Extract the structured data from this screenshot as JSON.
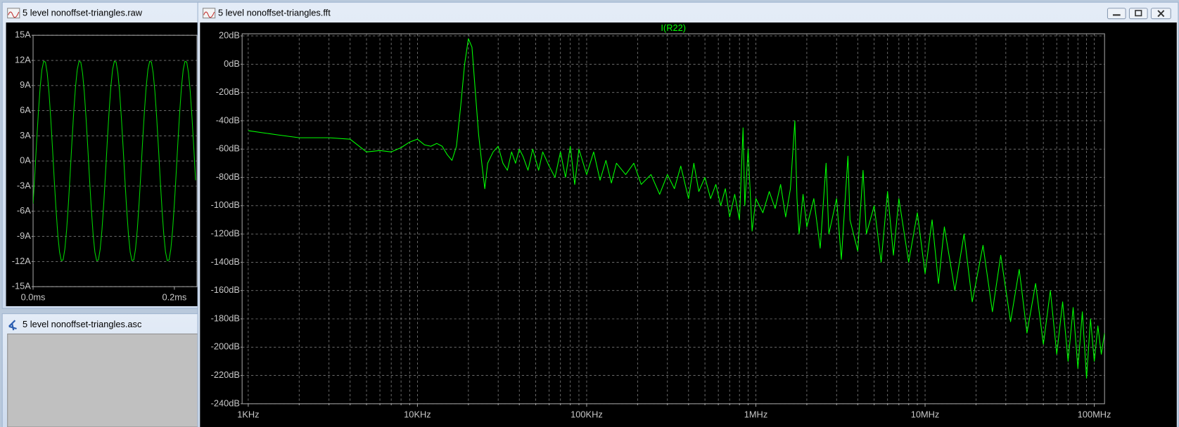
{
  "windows": [
    {
      "title": "5 level nonoffset-triangles.raw"
    },
    {
      "title": "5 level nonoffset-triangles.asc"
    },
    {
      "title": "5 level nonoffset-triangles.fft"
    }
  ],
  "chart_data": [
    {
      "type": "line",
      "x": [
        0,
        0.0025,
        0.005,
        0.0075,
        0.01,
        0.0125,
        0.015,
        0.0175,
        0.02,
        0.0225,
        0.025,
        0.0275,
        0.03,
        0.0325,
        0.035,
        0.0375,
        0.04,
        0.0425,
        0.045,
        0.0475,
        0.05,
        0.0525,
        0.055,
        0.0575,
        0.06,
        0.0625,
        0.065,
        0.0675,
        0.07,
        0.0725,
        0.075,
        0.0775,
        0.08,
        0.0825,
        0.085,
        0.0875,
        0.09,
        0.0925,
        0.095,
        0.0975,
        0.1,
        0.1025,
        0.105,
        0.1075,
        0.11,
        0.1125,
        0.115,
        0.1175,
        0.12,
        0.1225,
        0.125,
        0.1275,
        0.13,
        0.1325,
        0.135,
        0.1375,
        0.14,
        0.1425,
        0.145,
        0.1475,
        0.15,
        0.1525,
        0.155,
        0.1575,
        0.16,
        0.1625,
        0.165,
        0.1675,
        0.17,
        0.1725,
        0.175,
        0.1775,
        0.18,
        0.1825,
        0.185,
        0.1875,
        0.19,
        0.1925,
        0.195,
        0.1975,
        0.2,
        0.2025,
        0.205,
        0.2075,
        0.21,
        0.2125,
        0.215,
        0.2175,
        0.22,
        0.2225,
        0.225,
        0.2275,
        0.23
      ],
      "series": [
        {
          "color": "#00d400",
          "values": [
            -5.1,
            -1.5,
            2.3,
            5.8,
            8.8,
            10.9,
            11.9,
            11.8,
            10.5,
            8.2,
            5.1,
            1.5,
            -2.3,
            -5.8,
            -8.8,
            -10.9,
            -11.9,
            -11.8,
            -10.5,
            -8.2,
            -5.1,
            -1.5,
            2.3,
            5.8,
            8.8,
            10.9,
            11.9,
            11.8,
            10.5,
            8.2,
            5.1,
            1.5,
            -2.3,
            -5.8,
            -8.8,
            -10.9,
            -11.9,
            -11.8,
            -10.5,
            -8.2,
            -5.1,
            -1.5,
            2.3,
            5.8,
            8.8,
            10.9,
            11.9,
            11.8,
            10.5,
            8.2,
            5.1,
            1.5,
            -2.3,
            -5.8,
            -8.8,
            -10.9,
            -11.9,
            -11.8,
            -10.5,
            -8.2,
            -5.1,
            -1.5,
            2.3,
            5.8,
            8.8,
            10.9,
            11.9,
            11.8,
            10.5,
            8.2,
            5.1,
            1.5,
            -2.3,
            -5.8,
            -8.8,
            -10.9,
            -11.9,
            -11.8,
            -10.5,
            -8.2,
            -5.1,
            -1.5,
            2.3,
            5.8,
            8.8,
            10.9,
            11.9,
            11.8,
            10.5,
            8.2,
            5.1,
            1.5,
            -2.3
          ]
        }
      ],
      "xlim": [
        0,
        0.232
      ],
      "xticks": [
        {
          "value": 0,
          "label": "0.0ms"
        },
        {
          "value": 0.2,
          "label": "0.2ms"
        }
      ],
      "ylim": [
        -15,
        15
      ],
      "yticks": [
        {
          "value": 15,
          "label": "15A"
        },
        {
          "value": 12,
          "label": "12A"
        },
        {
          "value": 9,
          "label": "9A"
        },
        {
          "value": 6,
          "label": "6A"
        },
        {
          "value": 3,
          "label": "3A"
        },
        {
          "value": 0,
          "label": "0A"
        },
        {
          "value": -3,
          "label": "-3A"
        },
        {
          "value": -6,
          "label": "-6A"
        },
        {
          "value": -9,
          "label": "-9A"
        },
        {
          "value": -12,
          "label": "-12A"
        },
        {
          "value": -15,
          "label": "-15A"
        }
      ],
      "grid": true,
      "xgrid": false
    },
    {
      "type": "line",
      "title": "I(R22)",
      "xscale": "log",
      "x": [
        1000,
        1500,
        2000,
        3000,
        4000,
        5000,
        6000,
        7000,
        8000,
        9000,
        10000,
        11000,
        12000,
        13000,
        14000,
        15000,
        16000,
        17000,
        18000,
        19000,
        20000,
        21000,
        22000,
        23000,
        24000,
        25000,
        26000,
        28000,
        30000,
        32000,
        34000,
        36000,
        38000,
        40000,
        42000,
        45000,
        48000,
        52000,
        55000,
        60000,
        65000,
        70000,
        75000,
        80000,
        85000,
        90000,
        100000,
        110000,
        120000,
        130000,
        140000,
        150000,
        170000,
        190000,
        210000,
        240000,
        270000,
        300000,
        330000,
        360000,
        400000,
        430000,
        460000,
        500000,
        540000,
        580000,
        620000,
        660000,
        700000,
        750000,
        800000,
        840000,
        860000,
        900000,
        950000,
        1000000,
        1100000,
        1200000,
        1300000,
        1400000,
        1500000,
        1600000,
        1700000,
        1750000,
        1800000,
        1900000,
        2000000,
        2200000,
        2400000,
        2600000,
        2700000,
        3000000,
        3200000,
        3500000,
        3600000,
        4000000,
        4300000,
        4500000,
        5000000,
        5500000,
        6000000,
        6500000,
        7000000,
        8000000,
        9000000,
        10000000,
        11000000,
        12000000,
        13000000,
        15000000,
        17000000,
        19000000,
        22000000,
        25000000,
        28000000,
        32000000,
        36000000,
        40000000,
        45000000,
        50000000,
        55000000,
        60000000,
        65000000,
        70000000,
        75000000,
        80000000,
        85000000,
        90000000,
        95000000,
        100000000,
        105000000,
        110000000,
        115000000
      ],
      "series": [
        {
          "color": "#00ff00",
          "values": [
            -47,
            -50,
            -52,
            -52,
            -53,
            -62,
            -61,
            -62,
            -59,
            -55,
            -53,
            -57,
            -58,
            -56,
            -58,
            -64,
            -68,
            -58,
            -30,
            0,
            18,
            12,
            -20,
            -50,
            -70,
            -88,
            -70,
            -62,
            -58,
            -70,
            -75,
            -62,
            -70,
            -60,
            -65,
            -75,
            -60,
            -75,
            -62,
            -72,
            -80,
            -62,
            -80,
            -58,
            -85,
            -60,
            -78,
            -62,
            -82,
            -68,
            -84,
            -70,
            -78,
            -70,
            -85,
            -78,
            -92,
            -78,
            -88,
            -72,
            -95,
            -70,
            -90,
            -80,
            -95,
            -85,
            -100,
            -88,
            -108,
            -92,
            -110,
            -45,
            -100,
            -60,
            -118,
            -95,
            -105,
            -90,
            -102,
            -85,
            -108,
            -88,
            -40,
            -95,
            -120,
            -92,
            -115,
            -95,
            -130,
            -70,
            -120,
            -95,
            -138,
            -65,
            -110,
            -132,
            -75,
            -120,
            -100,
            -140,
            -90,
            -135,
            -95,
            -140,
            -105,
            -148,
            -110,
            -155,
            -115,
            -160,
            -120,
            -168,
            -128,
            -175,
            -135,
            -182,
            -145,
            -190,
            -155,
            -198,
            -160,
            -205,
            -168,
            -210,
            -172,
            -215,
            -175,
            -222,
            -180,
            -210,
            -185,
            -205,
            -190
          ]
        }
      ],
      "xlim": [
        920,
        115000000
      ],
      "xticks": [
        {
          "value": 1000,
          "label": "1KHz"
        },
        {
          "value": 10000,
          "label": "10KHz"
        },
        {
          "value": 100000,
          "label": "100KHz"
        },
        {
          "value": 1000000,
          "label": "1MHz"
        },
        {
          "value": 10000000,
          "label": "10MHz"
        },
        {
          "value": 100000000,
          "label": "100MHz"
        }
      ],
      "xminorticks": [
        2000,
        3000,
        4000,
        5000,
        6000,
        7000,
        8000,
        9000,
        20000,
        30000,
        40000,
        50000,
        60000,
        70000,
        80000,
        90000,
        200000,
        300000,
        400000,
        500000,
        600000,
        700000,
        800000,
        900000,
        2000000,
        3000000,
        4000000,
        5000000,
        6000000,
        7000000,
        8000000,
        9000000,
        20000000,
        30000000,
        40000000,
        50000000,
        60000000,
        70000000,
        80000000,
        90000000
      ],
      "ylim": [
        -240,
        21.5
      ],
      "yticks": [
        {
          "value": 20,
          "label": "20dB"
        },
        {
          "value": 0,
          "label": "0dB"
        },
        {
          "value": -20,
          "label": "-20dB"
        },
        {
          "value": -40,
          "label": "-40dB"
        },
        {
          "value": -60,
          "label": "-60dB"
        },
        {
          "value": -80,
          "label": "-80dB"
        },
        {
          "value": -100,
          "label": "-100dB"
        },
        {
          "value": -120,
          "label": "-120dB"
        },
        {
          "value": -140,
          "label": "-140dB"
        },
        {
          "value": -160,
          "label": "-160dB"
        },
        {
          "value": -180,
          "label": "-180dB"
        },
        {
          "value": -200,
          "label": "-200dB"
        },
        {
          "value": -220,
          "label": "-220dB"
        },
        {
          "value": -240,
          "label": "-240dB"
        }
      ],
      "grid": true,
      "xgrid": true
    }
  ]
}
